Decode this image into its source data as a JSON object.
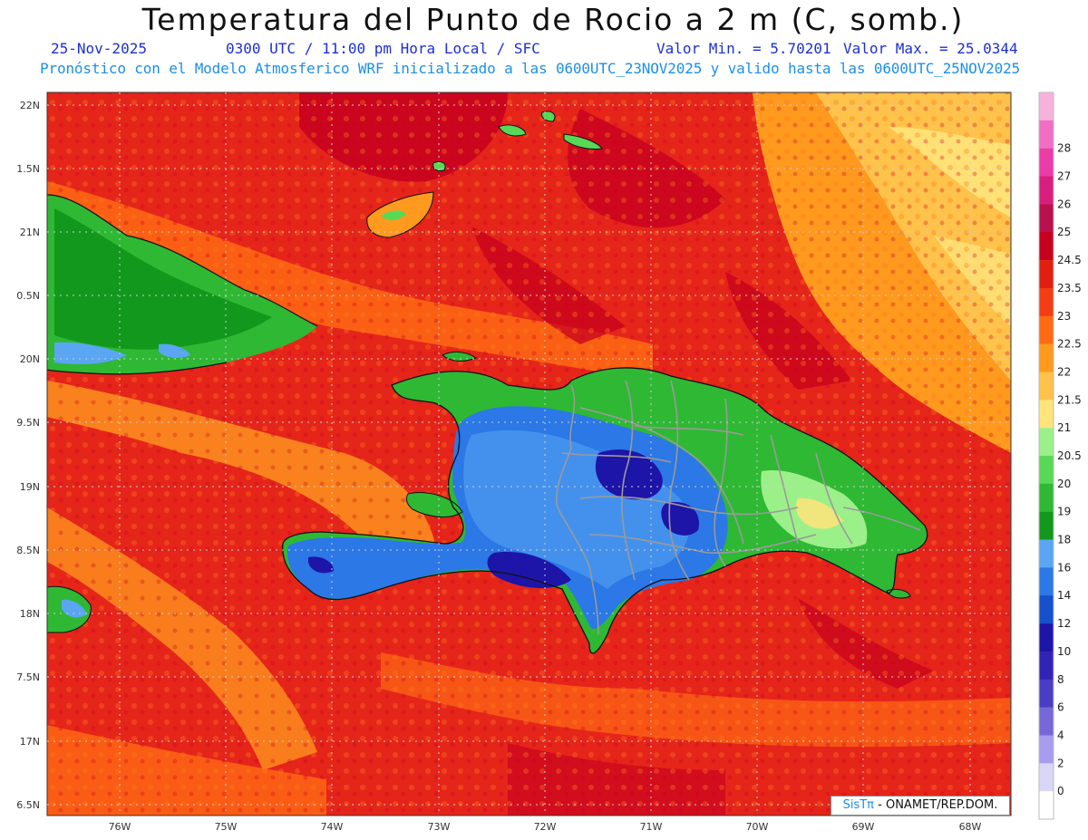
{
  "header": {
    "title": "Temperatura del Punto de Rocio a 2 m (C, somb.)",
    "date": "25-Nov-2025",
    "time": "0300 UTC / 11:00 pm Hora Local / SFC",
    "vmin": "Valor Min. = 5.70201",
    "vmax": "Valor Max. = 25.0344",
    "model_line": "Pronóstico con el Modelo Atmosferico WRF inicializado a las 0600UTC_23NOV2025 y valido hasta las  0600UTC_25NOV2025"
  },
  "lat_labels": [
    "22N",
    "1.5N",
    "21N",
    "0.5N",
    "20N",
    "9.5N",
    "19N",
    "8.5N",
    "18N",
    "7.5N",
    "17N",
    "6.5N"
  ],
  "lon_labels": [
    "76W",
    "75W",
    "74W",
    "73W",
    "72W",
    "71W",
    "70W",
    "69W",
    "68W"
  ],
  "colorbar": [
    {
      "label": "",
      "color": "#f7b2dc"
    },
    {
      "label": "28",
      "color": "#f06fc4"
    },
    {
      "label": "27",
      "color": "#eb3ca8"
    },
    {
      "label": "26",
      "color": "#d81f7e"
    },
    {
      "label": "25",
      "color": "#b8124e"
    },
    {
      "label": "24.5",
      "color": "#c7001e"
    },
    {
      "label": "23.5",
      "color": "#e01f10"
    },
    {
      "label": "23",
      "color": "#f23e12"
    },
    {
      "label": "22.5",
      "color": "#ff6a14"
    },
    {
      "label": "22",
      "color": "#ff9a1f"
    },
    {
      "label": "21.5",
      "color": "#ffc24a"
    },
    {
      "label": "21",
      "color": "#ffe47a"
    },
    {
      "label": "20.5",
      "color": "#9cf08a"
    },
    {
      "label": "20",
      "color": "#58d956"
    },
    {
      "label": "19",
      "color": "#2fb834"
    },
    {
      "label": "18",
      "color": "#12981c"
    },
    {
      "label": "16",
      "color": "#5aa6f2"
    },
    {
      "label": "14",
      "color": "#2b78e6"
    },
    {
      "label": "12",
      "color": "#1650cc"
    },
    {
      "label": "10",
      "color": "#1d14a8"
    },
    {
      "label": "8",
      "color": "#3124b4"
    },
    {
      "label": "6",
      "color": "#4a3dc4"
    },
    {
      "label": "4",
      "color": "#7668d8"
    },
    {
      "label": "2",
      "color": "#a79cf0"
    },
    {
      "label": "0",
      "color": "#d8d8f6"
    },
    {
      "label": "",
      "color": "#ffffff"
    }
  ],
  "credit": {
    "logo": "SisTπ",
    "text": "- ONAMET/REP.DOM."
  }
}
